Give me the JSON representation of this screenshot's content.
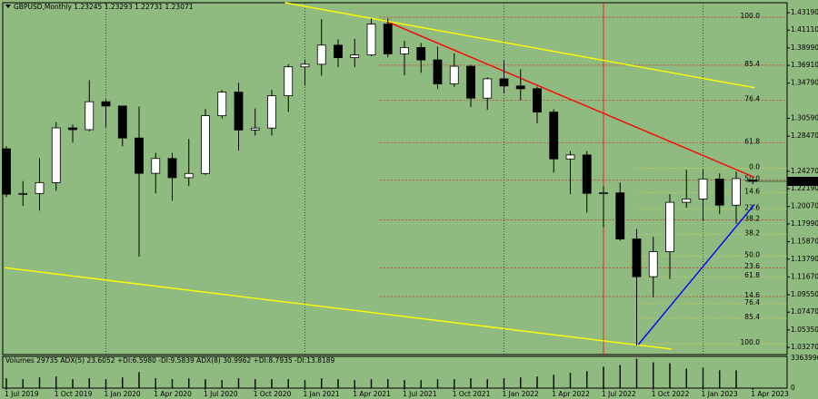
{
  "chart_data": {
    "type": "candlestick",
    "title": "GBPUSD,Monthly  1.23245 1.23293 1.22731 1.23071",
    "categories": [
      "1 Jul 2019",
      null,
      null,
      "1 Oct 2019",
      null,
      null,
      "1 Jan 2020",
      null,
      null,
      "1 Apr 2020",
      null,
      null,
      "1 Jul 2020",
      null,
      null,
      "1 Oct 2020",
      null,
      null,
      "1 Jan 2021",
      null,
      null,
      "1 Apr 2021",
      null,
      null,
      "1 Jul 2021",
      null,
      null,
      "1 Oct 2021",
      null,
      null,
      "1 Jan 2022",
      null,
      null,
      "1 Apr 2022",
      null,
      null,
      "1 Jul 2022",
      null,
      null,
      "1 Oct 2022",
      null,
      null,
      "1 Jan 2023",
      null,
      null,
      "1 Apr 2023"
    ],
    "open": [
      1.2695,
      1.2154,
      1.2163,
      1.2292,
      1.2945,
      1.2924,
      1.3257,
      1.3206,
      1.2824,
      1.2403,
      1.258,
      1.2351,
      1.2401,
      1.309,
      1.3372,
      1.292,
      1.2943,
      1.3328,
      1.3673,
      1.3704,
      1.3932,
      1.3783,
      1.3815,
      1.4183,
      1.3828,
      1.3903,
      1.3756,
      1.347,
      1.368,
      1.33,
      1.353,
      1.3445,
      1.3412,
      1.3134,
      1.2575,
      1.2622,
      1.2164,
      1.217,
      1.162,
      1.117,
      1.1468,
      1.2057,
      1.2097,
      1.2335,
      1.2023,
      1.23245
    ],
    "high": [
      1.2725,
      1.231,
      1.2583,
      1.3013,
      1.2986,
      1.3514,
      1.3285,
      1.3199,
      1.32,
      1.2648,
      1.2646,
      1.2813,
      1.317,
      1.3395,
      1.3482,
      1.3177,
      1.3398,
      1.3704,
      1.376,
      1.4242,
      1.4002,
      1.4009,
      1.425,
      1.4249,
      1.3984,
      1.3958,
      1.3913,
      1.3834,
      1.3698,
      1.3549,
      1.3749,
      1.3644,
      1.3438,
      1.3167,
      1.2667,
      1.2667,
      1.2247,
      1.2293,
      1.1738,
      1.1645,
      1.2154,
      1.2446,
      1.2448,
      1.2402,
      1.2424,
      1.23293
    ],
    "low": [
      1.2119,
      1.2015,
      1.1958,
      1.2195,
      1.2769,
      1.2905,
      1.2953,
      1.2725,
      1.1409,
      1.2165,
      1.2076,
      1.2252,
      1.2385,
      1.3058,
      1.2676,
      1.2854,
      1.2855,
      1.3135,
      1.345,
      1.3567,
      1.3668,
      1.3669,
      1.38,
      1.3786,
      1.3572,
      1.3602,
      1.3412,
      1.3434,
      1.3194,
      1.3161,
      1.3358,
      1.3273,
      1.3001,
      1.2411,
      1.2155,
      1.1934,
      1.176,
      1.16,
      1.035,
      1.0924,
      1.1143,
      1.1992,
      1.1841,
      1.1915,
      1.1803,
      1.22731
    ],
    "close": [
      1.2154,
      1.2163,
      1.2292,
      1.2945,
      1.2924,
      1.3257,
      1.3206,
      1.2824,
      1.2403,
      1.258,
      1.2351,
      1.2401,
      1.309,
      1.3372,
      1.292,
      1.2943,
      1.3328,
      1.3673,
      1.3704,
      1.3932,
      1.3783,
      1.3815,
      1.4183,
      1.3828,
      1.3903,
      1.3756,
      1.347,
      1.368,
      1.33,
      1.353,
      1.3445,
      1.3412,
      1.3134,
      1.2575,
      1.2622,
      1.2164,
      1.217,
      1.162,
      1.117,
      1.1468,
      1.2057,
      1.2097,
      1.2335,
      1.2023,
      1.234,
      1.23071
    ],
    "ylim": [
      1.0241,
      1.4438
    ],
    "yticks": [
      {
        "value": 1.4319,
        "label": "1.43190"
      },
      {
        "value": 1.4111,
        "label": "1.41110"
      },
      {
        "value": 1.3899,
        "label": "1.38990"
      },
      {
        "value": 1.3691,
        "label": "1.36910"
      },
      {
        "value": 1.3479,
        "label": "1.34790"
      },
      {
        "value": 1.3059,
        "label": "1.30590"
      },
      {
        "value": 1.2847,
        "label": "1.28470"
      },
      {
        "value": 1.2427,
        "label": "1.24270"
      },
      {
        "value": 1.2219,
        "label": "1.22190"
      },
      {
        "value": 1.2007,
        "label": "1.20070"
      },
      {
        "value": 1.1799,
        "label": "1.17990"
      },
      {
        "value": 1.1587,
        "label": "1.15870"
      },
      {
        "value": 1.1379,
        "label": "1.13790"
      },
      {
        "value": 1.1167,
        "label": "1.11670"
      },
      {
        "value": 1.0955,
        "label": "1.09550"
      },
      {
        "value": 1.0747,
        "label": "1.07470"
      },
      {
        "value": 1.0535,
        "label": "1.05350"
      },
      {
        "value": 1.0327,
        "label": "1.03270"
      }
    ],
    "last_price": 1.23071,
    "fib_red": [
      {
        "label": "100.0",
        "value": 1.4265
      },
      {
        "label": "85.4",
        "value": 1.3693
      },
      {
        "label": "76.4",
        "value": 1.3273
      },
      {
        "label": "61.8",
        "value": 1.2766
      },
      {
        "label": "50.0",
        "value": 1.2323
      },
      {
        "label": "38.2",
        "value": 1.1849
      },
      {
        "label": "23.6",
        "value": 1.1277
      },
      {
        "label": "14.6",
        "value": 1.0932
      }
    ],
    "fib_yellow": [
      {
        "label": "0.0",
        "value": 1.2464
      },
      {
        "label": "14.6",
        "value": 1.2172
      },
      {
        "label": "23.6",
        "value": 1.1978
      },
      {
        "label": "38.2",
        "value": 1.1676
      },
      {
        "label": "50.0",
        "value": 1.1417
      },
      {
        "label": "61.8",
        "value": 1.1169
      },
      {
        "label": "76.4",
        "value": 1.0846
      },
      {
        "label": "85.4",
        "value": 1.0673
      },
      {
        "label": "100.0",
        "value": 1.0371
      }
    ],
    "trendlines": [
      {
        "color": "#ff0000",
        "x": [
          22.7,
          45.1
        ],
        "y": [
          1.4233,
          1.2356
        ]
      },
      {
        "color": "#ffff00",
        "x": [
          16.8,
          45.1
        ],
        "y": [
          1.4438,
          1.3424
        ]
      },
      {
        "color": "#ffff00",
        "x": [
          -0.1,
          40.1
        ],
        "y": [
          1.1277,
          1.0306
        ]
      },
      {
        "color": "#0000ff",
        "x": [
          38.1,
          45.1
        ],
        "y": [
          1.036,
          1.2032
        ]
      }
    ],
    "volume_label": "Volumes 29735  ADX(5) 23.6052 +DI:6.5980 -DI:9.5839  ADX(8) 30.9962 +DI:8.7935 -DI:13.8189",
    "volume": [
      1100000,
      1000000,
      1200000,
      1300000,
      1000000,
      1100000,
      1000000,
      1200000,
      1800000,
      1100000,
      1000000,
      1100000,
      1000000,
      900000,
      1100000,
      1000000,
      1000000,
      1000000,
      900000,
      1100000,
      1000000,
      900000,
      1000000,
      1000000,
      900000,
      900000,
      1000000,
      1000000,
      1100000,
      1000000,
      1100000,
      1200000,
      1300000,
      1500000,
      1700000,
      1900000,
      2400000,
      2600000,
      3300000,
      2900000,
      2800000,
      2200000,
      2300000,
      2000000,
      2000000,
      29735
    ],
    "volume_ylim": [
      0,
      3363996
    ],
    "volume_yticks": [
      0,
      3363996
    ]
  }
}
